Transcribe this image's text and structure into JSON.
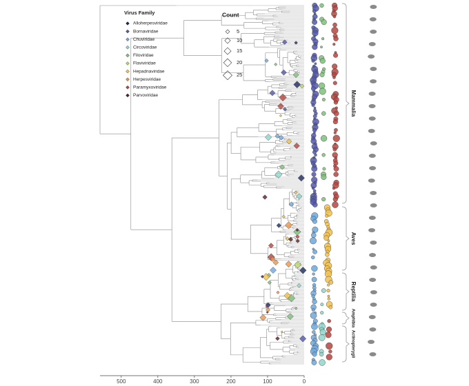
{
  "chart_data": {
    "type": "phylogeny",
    "legend_title": "Virus Family",
    "families": [
      {
        "name": "Alloherpesviridae",
        "color": "#1f2a5c"
      },
      {
        "name": "Bornaviridae",
        "color": "#5358a8"
      },
      {
        "name": "Chuviridae",
        "color": "#6fa8dc"
      },
      {
        "name": "Circoviridae",
        "color": "#8fd6c9"
      },
      {
        "name": "Filoviridae",
        "color": "#7fbf7b"
      },
      {
        "name": "Flaviviridae",
        "color": "#b8d86b"
      },
      {
        "name": "Hepadnaviridae",
        "color": "#f2c14e"
      },
      {
        "name": "Herpesviridae",
        "color": "#e8934a"
      },
      {
        "name": "Paramyxoviridae",
        "color": "#b5453f"
      },
      {
        "name": "Parvoviridae",
        "color": "#5a1f2a"
      }
    ],
    "size_legend": {
      "title": "Count",
      "values": [
        5,
        10,
        15,
        20,
        25
      ]
    },
    "xlim": [
      558,
      0
    ],
    "xticks": [
      500,
      400,
      300,
      200,
      100,
      0
    ],
    "clades": [
      "Mammalia",
      "Aves",
      "Reptilia",
      "Amphibia",
      "Actinopterygii"
    ]
  }
}
